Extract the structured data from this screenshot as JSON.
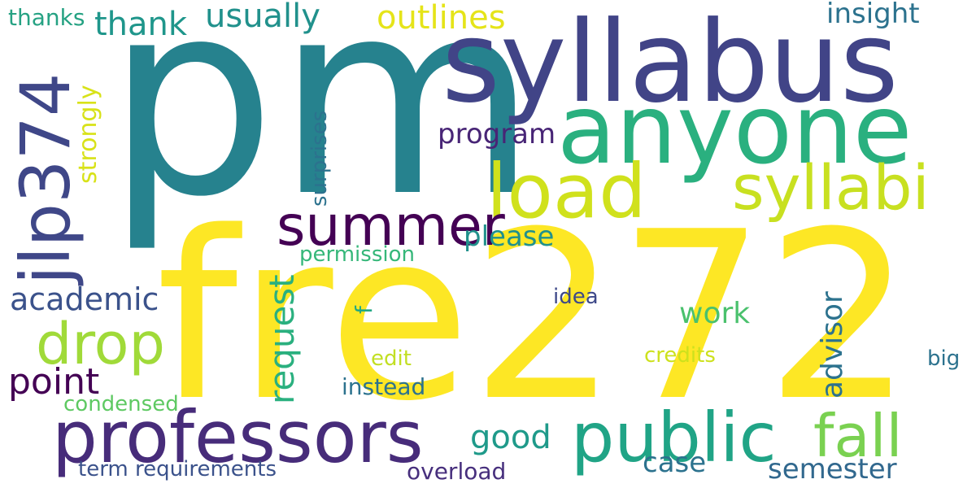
{
  "words": {
    "fre272": {
      "text": "fre272",
      "color": "#fde725"
    },
    "pm": {
      "text": "pm",
      "color": "#26828e"
    },
    "syllabus": {
      "text": "syllabus",
      "color": "#414487"
    },
    "anyone": {
      "text": "anyone",
      "color": "#2ab07f"
    },
    "load": {
      "text": "load",
      "color": "#d0e11c"
    },
    "syllabi": {
      "text": "syllabi",
      "color": "#c8e020"
    },
    "summer": {
      "text": "summer",
      "color": "#440154"
    },
    "jlp374": {
      "text": "jlp374",
      "color": "#3f4788"
    },
    "professors": {
      "text": "professors",
      "color": "#472c7a"
    },
    "public": {
      "text": "public",
      "color": "#20a486"
    },
    "fall": {
      "text": "fall",
      "color": "#7ad151"
    },
    "drop": {
      "text": "drop",
      "color": "#a0da39"
    },
    "point": {
      "text": "point",
      "color": "#440154"
    },
    "academic": {
      "text": "academic",
      "color": "#3b528b"
    },
    "request": {
      "text": "request",
      "color": "#2ab07f"
    },
    "advisor": {
      "text": "advisor",
      "color": "#2c728e"
    },
    "work": {
      "text": "work",
      "color": "#4ac16d"
    },
    "good": {
      "text": "good",
      "color": "#1f9a8a"
    },
    "case": {
      "text": "case",
      "color": "#2c728e"
    },
    "semester": {
      "text": "semester",
      "color": "#31688e"
    },
    "please": {
      "text": "please",
      "color": "#21918c"
    },
    "program": {
      "text": "program",
      "color": "#482576"
    },
    "usually": {
      "text": "usually",
      "color": "#21918c"
    },
    "outlines": {
      "text": "outlines",
      "color": "#e5e419"
    },
    "thank": {
      "text": "thank",
      "color": "#1f968b"
    },
    "insight": {
      "text": "insight",
      "color": "#2c728e"
    },
    "strongly": {
      "text": "strongly",
      "color": "#d8e219"
    },
    "surprises": {
      "text": "surprises",
      "color": "#2c728e"
    },
    "permission": {
      "text": "permission",
      "color": "#35b779"
    },
    "f": {
      "text": "f",
      "color": "#22a884"
    },
    "idea": {
      "text": "idea",
      "color": "#3e4989"
    },
    "edit": {
      "text": "edit",
      "color": "#c2df23"
    },
    "credits": {
      "text": "credits",
      "color": "#cde11d"
    },
    "instead": {
      "text": "instead",
      "color": "#2c728e"
    },
    "big": {
      "text": "big",
      "color": "#2c728e"
    },
    "condensed": {
      "text": "condensed",
      "color": "#5ec962"
    },
    "term_requirements": {
      "text": "term requirements",
      "color": "#3b528b"
    },
    "overload": {
      "text": "overload",
      "color": "#472f7d"
    },
    "thanks": {
      "text": "thanks",
      "color": "#26a283"
    }
  }
}
